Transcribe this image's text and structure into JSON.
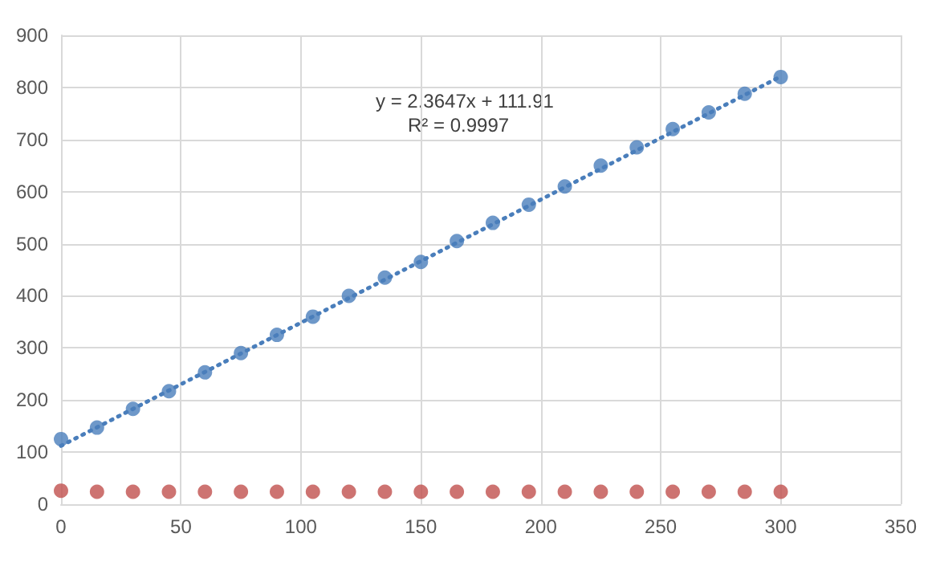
{
  "chart_data": {
    "type": "scatter",
    "x": [
      0,
      15,
      30,
      45,
      60,
      75,
      90,
      105,
      120,
      135,
      150,
      165,
      180,
      195,
      210,
      225,
      240,
      255,
      270,
      285,
      300
    ],
    "series": [
      {
        "color": "#4a7ebb",
        "marker": "circle",
        "values": [
          125,
          147,
          183,
          217,
          253,
          290,
          325,
          360,
          400,
          435,
          465,
          505,
          540,
          575,
          610,
          650,
          685,
          720,
          752,
          788,
          820
        ]
      },
      {
        "color": "#c0504d",
        "marker": "circle",
        "values": [
          26,
          24,
          24,
          24,
          24,
          24,
          24,
          24,
          24,
          24,
          24,
          24,
          24,
          24,
          24,
          24,
          24,
          24,
          24,
          24,
          24
        ]
      },
      {
        "type": "line",
        "color": "#4a7ebb",
        "marker": "none",
        "line_style": "dotted",
        "x": [
          0,
          300
        ],
        "values": [
          112,
          821
        ]
      }
    ],
    "annotations": [
      "y = 2.3647x + 111.91",
      "R² = 0.9997"
    ],
    "xlim": [
      0,
      350
    ],
    "xticks": [
      0,
      50,
      100,
      150,
      200,
      250,
      300,
      350
    ],
    "ylim": [
      0,
      900
    ],
    "yticks": [
      0,
      100,
      200,
      300,
      400,
      500,
      600,
      700,
      800,
      900
    ],
    "grid": true
  }
}
